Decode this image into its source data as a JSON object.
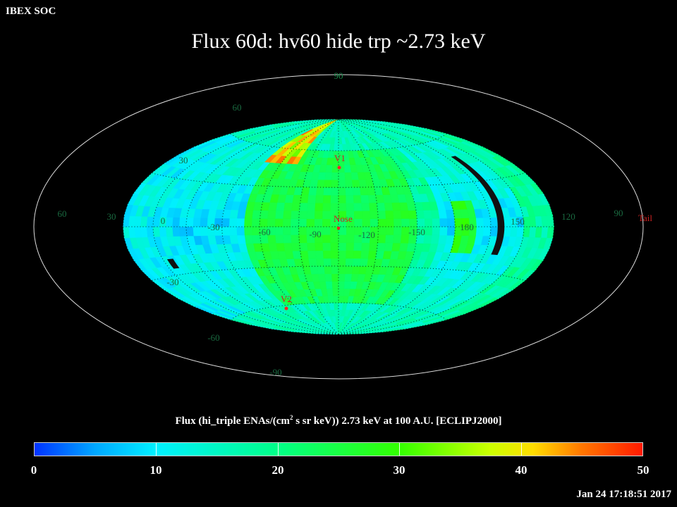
{
  "header": {
    "organization": "IBEX SOC",
    "title": "Flux   60d: hv60 hide trp ~2.73 keV"
  },
  "map": {
    "projection": "Aitoff/Hammer all-sky (ecliptic)",
    "longitude_labels": [
      "60",
      "30",
      "0",
      "-30",
      "-60",
      "-90",
      "-120",
      "-150",
      "180",
      "150",
      "120",
      "90"
    ],
    "latitude_labels_north": [
      "90",
      "60",
      "30"
    ],
    "latitude_labels_south": [
      "-30",
      "-60",
      "-90"
    ],
    "equator_labels": {
      "lon_left": "60",
      "lon_left2": "30"
    },
    "markers": [
      {
        "label": "V1",
        "color": "#ff3333"
      },
      {
        "label": "Nose",
        "color": "#ff3333"
      },
      {
        "label": "V2",
        "color": "#ff3333"
      },
      {
        "label": "Tail",
        "color": "#ff3333"
      }
    ]
  },
  "colorbar": {
    "title_prefix": "Flux (hi_triple ENAs/(cm",
    "title_sup": "2",
    "title_suffix": " s sr keV))  2.73 keV at 100 A.U. [ECLIPJ2000]",
    "ticks": [
      "0",
      "10",
      "20",
      "30",
      "40",
      "50"
    ],
    "min": 0,
    "max": 50
  },
  "footer": {
    "timestamp": "Jan 24 17:18:51 2017"
  }
}
